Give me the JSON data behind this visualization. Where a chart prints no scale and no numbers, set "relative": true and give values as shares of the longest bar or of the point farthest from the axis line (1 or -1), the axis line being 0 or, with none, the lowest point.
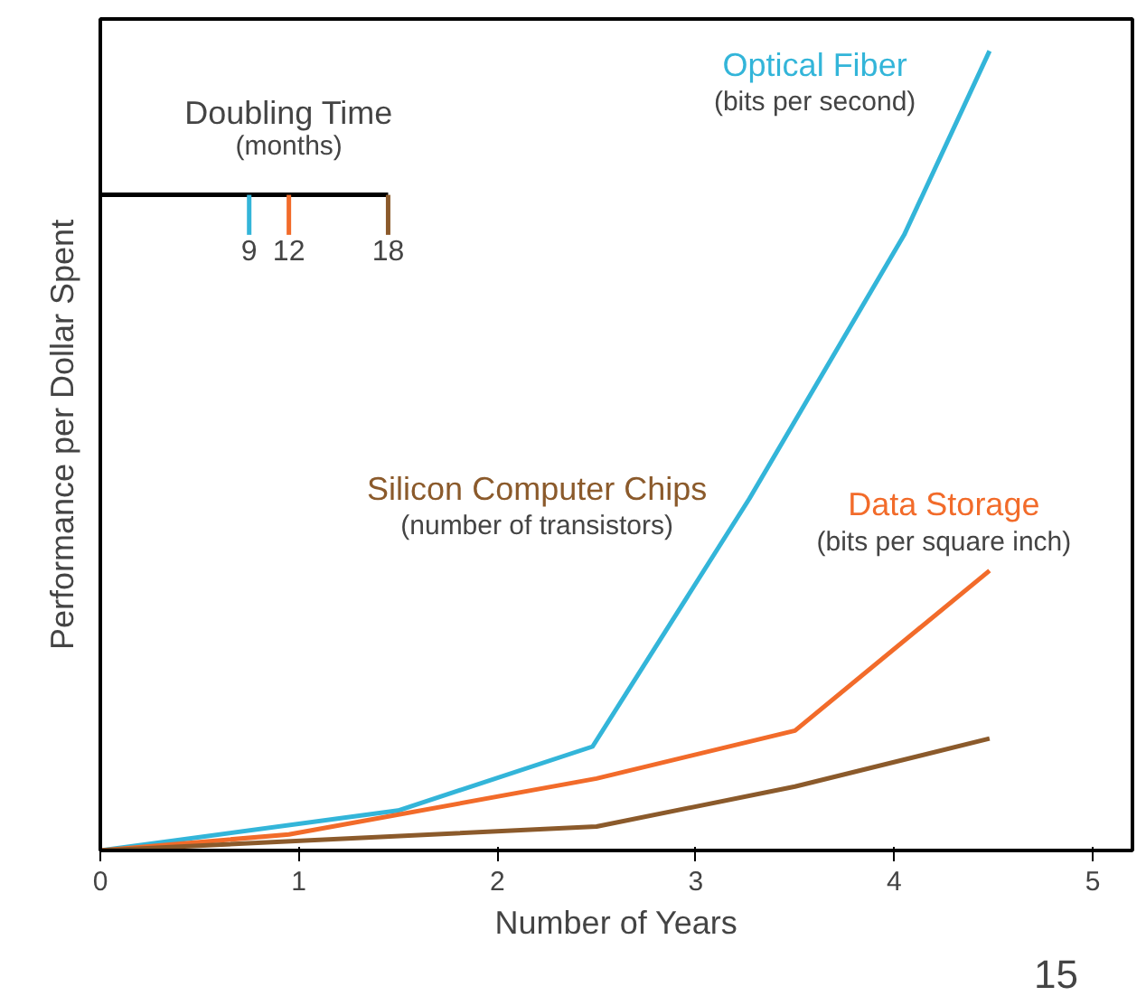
{
  "chart_data": {
    "type": "line",
    "relative": true,
    "xlabel": "Number of Years",
    "ylabel": "Performance per Dollar Spent",
    "xlim": [
      0,
      5.2
    ],
    "xticks": [
      0,
      1,
      2,
      3,
      4,
      5
    ],
    "grid": false,
    "legend": false,
    "marker": "none",
    "line_style": "solid",
    "series": [
      {
        "name": "Optical Fiber",
        "color": "#33b5d9",
        "x": [
          0,
          1.5,
          2.48,
          3.27,
          4.05,
          4.48
        ],
        "values": [
          0,
          0.05,
          0.13,
          0.44,
          0.77,
          1.0
        ]
      },
      {
        "name": "Data Storage",
        "color": "#f26b2a",
        "x": [
          0,
          0.95,
          2.5,
          3.5,
          4.48
        ],
        "values": [
          0,
          0.02,
          0.09,
          0.15,
          0.35
        ]
      },
      {
        "name": "Silicon Computer Chips",
        "color": "#8b5a2b",
        "x": [
          0,
          2.5,
          3.5,
          4.48
        ],
        "values": [
          0,
          0.03,
          0.08,
          0.14
        ]
      }
    ],
    "annotations": [
      "(bits per second)",
      "(bits per square inch)",
      "(number of transistors)",
      "Doubling Time",
      "(months)",
      "9",
      "12",
      "18",
      "15"
    ]
  }
}
